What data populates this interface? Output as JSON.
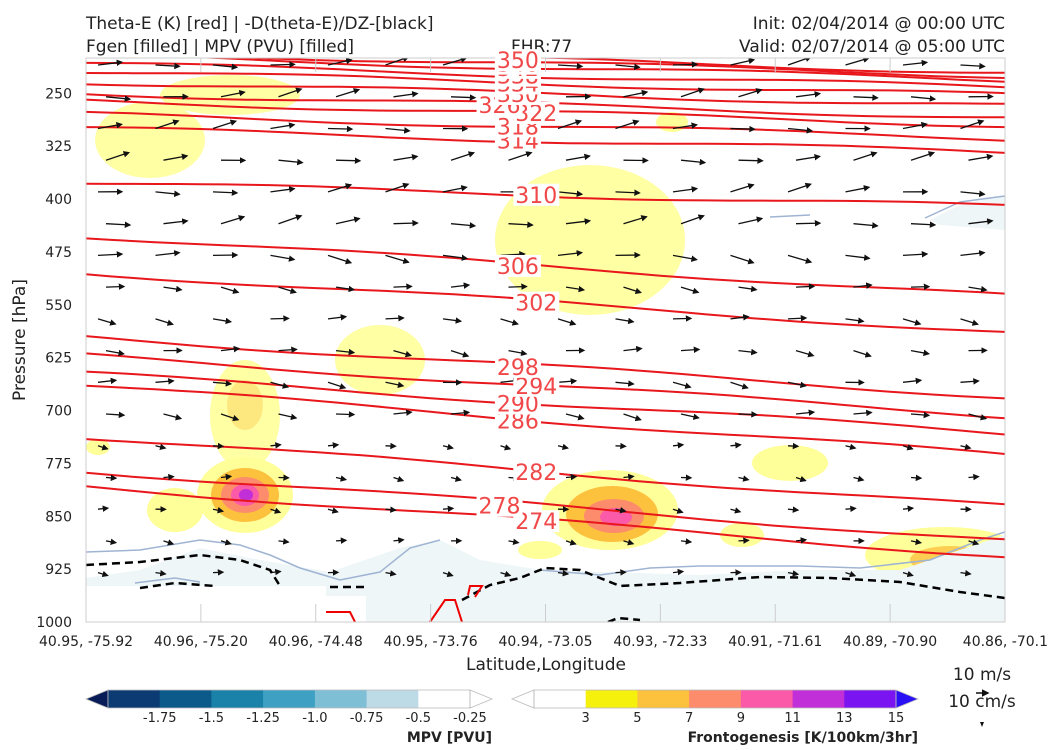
{
  "header": {
    "title_left_1": "Theta-E (K) [red] | -D(theta-E)/DZ-[black]",
    "title_left_2": "Fgen [filled] | MPV (PVU) [filled]",
    "fhr": "FHR:77",
    "init": "Init: 02/04/2014 @ 00:00 UTC",
    "valid": "Valid: 02/07/2014 @ 05:00 UTC"
  },
  "chart_data": {
    "type": "cross-section",
    "xlabel": "Latitude,Longitude",
    "ylabel": "Pressure [hPa]",
    "ylim": [
      1000,
      200
    ],
    "y_ticks": [
      250,
      325,
      400,
      475,
      550,
      625,
      700,
      775,
      850,
      925,
      1000
    ],
    "x_ticks": [
      "40.95, -75.92",
      "40.96, -75.20",
      "40.96, -74.48",
      "40.95, -73.76",
      "40.94, -73.05",
      "40.93, -72.33",
      "40.91, -71.61",
      "40.89, -70.90",
      "40.86, -70.1"
    ],
    "theta_e_labels": [
      {
        "value": "274",
        "x": 0.49,
        "p": 857
      },
      {
        "value": "278",
        "x": 0.45,
        "p": 835
      },
      {
        "value": "282",
        "x": 0.49,
        "p": 787
      },
      {
        "value": "286",
        "x": 0.47,
        "p": 714
      },
      {
        "value": "290",
        "x": 0.47,
        "p": 690
      },
      {
        "value": "294",
        "x": 0.49,
        "p": 665
      },
      {
        "value": "298",
        "x": 0.47,
        "p": 638
      },
      {
        "value": "302",
        "x": 0.49,
        "p": 547
      },
      {
        "value": "306",
        "x": 0.47,
        "p": 495
      },
      {
        "value": "310",
        "x": 0.49,
        "p": 394
      },
      {
        "value": "314",
        "x": 0.47,
        "p": 317
      },
      {
        "value": "318",
        "x": 0.47,
        "p": 297
      },
      {
        "value": "322",
        "x": 0.49,
        "p": 278
      },
      {
        "value": "326",
        "x": 0.45,
        "p": 267
      },
      {
        "value": "330",
        "x": 0.47,
        "p": 251
      },
      {
        "value": "334",
        "x": 0.47,
        "p": 236
      },
      {
        "value": "338",
        "x": 0.47,
        "p": 225
      },
      {
        "value": "342",
        "x": 0.47,
        "p": 214
      },
      {
        "value": "346",
        "x": 0.47,
        "p": 208
      },
      {
        "value": "350",
        "x": 0.47,
        "p": 203
      }
    ],
    "mpv_colorbar": {
      "title": "MPV [PVU]",
      "labels": [
        "-1.75",
        "-1.5",
        "-1.25",
        "-1.0",
        "-0.75",
        "-0.5",
        "-0.25"
      ],
      "colors": [
        "#081d58",
        "#0c3a73",
        "#0b5a8a",
        "#1a82a8",
        "#3ea1c4",
        "#7ebfd6",
        "#bcdbe6",
        "#ffffff"
      ]
    },
    "fgen_colorbar": {
      "title": "Frontogenesis [K/100km/3hr]",
      "labels": [
        "3",
        "5",
        "7",
        "9",
        "11",
        "13",
        "15"
      ],
      "colors": [
        "#ffffff",
        "#f5f00c",
        "#fcc23e",
        "#fc8c6c",
        "#fb5aa8",
        "#c02fd7",
        "#7a14f0",
        "#2a10f5"
      ]
    },
    "vector_key": {
      "horizontal": "10 m/s",
      "vertical": "10 cm/s"
    }
  }
}
